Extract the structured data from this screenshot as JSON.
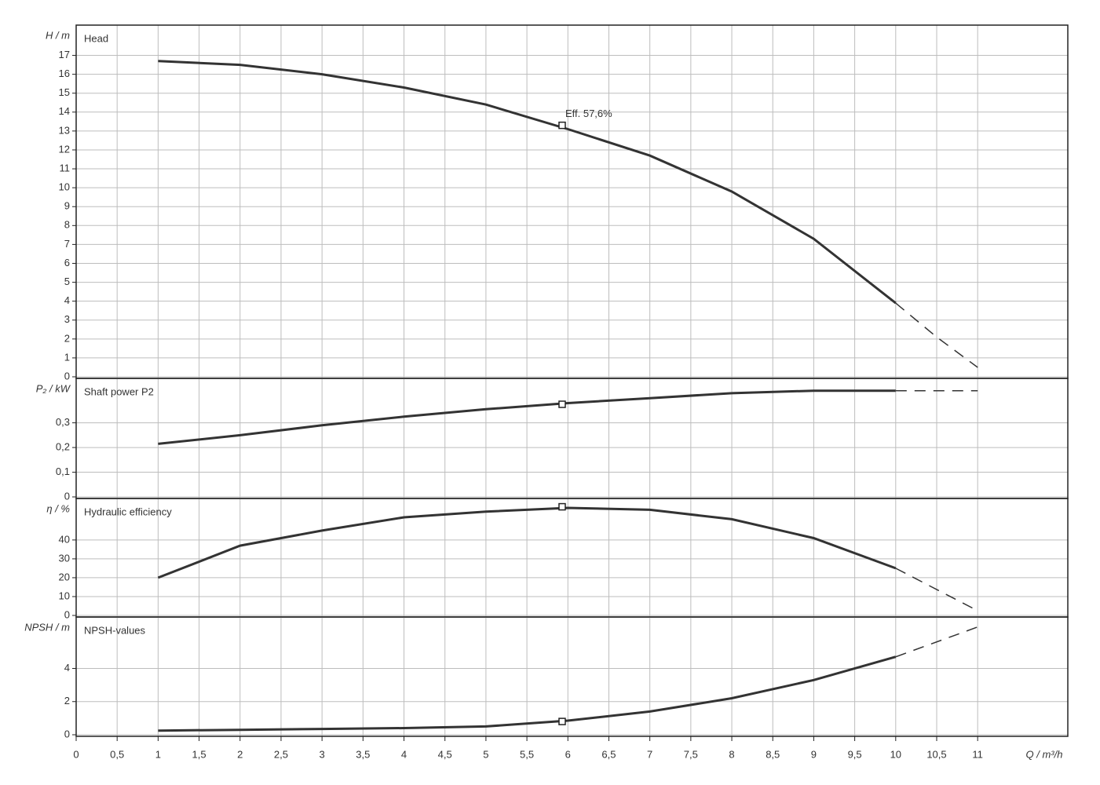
{
  "chart_data": [
    {
      "type": "line",
      "title": "Head",
      "ylabel": "H / m",
      "x": [
        1,
        2,
        3,
        4,
        5,
        6,
        7,
        8,
        9,
        10,
        10.5,
        11
      ],
      "series": [
        {
          "color": "#333333",
          "dash": false,
          "values": [
            16.7,
            16.5,
            16.0,
            15.3,
            14.4,
            13.1,
            11.7,
            9.8,
            7.3,
            3.9,
            null,
            null
          ]
        },
        {
          "color": "#333333",
          "dash": true,
          "values": [
            null,
            null,
            null,
            null,
            null,
            null,
            null,
            null,
            null,
            3.9,
            2.1,
            0.5
          ]
        }
      ],
      "point": {
        "x": 5.93,
        "y": 13.3
      },
      "annotation": "Eff.  57,6%",
      "xlim": [
        0,
        12.1
      ],
      "ylim": [
        0,
        18.6
      ],
      "yticks": [
        0,
        1,
        2,
        3,
        4,
        5,
        6,
        7,
        8,
        9,
        10,
        11,
        12,
        13,
        14,
        15,
        16,
        17
      ],
      "grid": true
    },
    {
      "type": "line",
      "title": "Shaft power P2",
      "ylabel": "P₂ / kW",
      "x": [
        1,
        2,
        3,
        4,
        5,
        6,
        7,
        8,
        9,
        10,
        11
      ],
      "series": [
        {
          "color": "#333333",
          "dash": false,
          "values": [
            0.215,
            0.25,
            0.29,
            0.325,
            0.355,
            0.38,
            0.4,
            0.42,
            0.43,
            0.43,
            null
          ]
        },
        {
          "color": "#333333",
          "dash": true,
          "values": [
            null,
            null,
            null,
            null,
            null,
            null,
            null,
            null,
            null,
            0.43,
            0.43
          ]
        }
      ],
      "point": {
        "x": 5.93,
        "y": 0.375
      },
      "xlim": [
        0,
        12.1
      ],
      "ylim": [
        0,
        0.48
      ],
      "yticks": [
        0,
        {
          "value": 0.1,
          "label": "0,1"
        },
        {
          "value": 0.2,
          "label": "0,2"
        },
        {
          "value": 0.3,
          "label": "0,3"
        }
      ],
      "grid": true
    },
    {
      "type": "line",
      "title": "Hydraulic efficiency",
      "ylabel": "η / %",
      "x": [
        1,
        2,
        3,
        4,
        5,
        6,
        7,
        8,
        9,
        10,
        11
      ],
      "series": [
        {
          "color": "#333333",
          "dash": false,
          "values": [
            20,
            37,
            45,
            52,
            55,
            57,
            56,
            51,
            41,
            25,
            null
          ]
        },
        {
          "color": "#333333",
          "dash": true,
          "values": [
            null,
            null,
            null,
            null,
            null,
            null,
            null,
            null,
            null,
            25,
            2.5
          ]
        }
      ],
      "point": {
        "x": 5.93,
        "y": 57.6
      },
      "xlim": [
        0,
        12.1
      ],
      "ylim": [
        0,
        62
      ],
      "yticks": [
        0,
        10,
        20,
        30,
        40
      ],
      "grid": true
    },
    {
      "type": "line",
      "title": "NPSH-values",
      "ylabel": "NPSH / m",
      "xlabel": "Q / m³/h",
      "x": [
        1,
        2,
        3,
        4,
        5,
        6,
        7,
        8,
        9,
        10,
        11
      ],
      "series": [
        {
          "color": "#333333",
          "dash": false,
          "values": [
            0.25,
            0.3,
            0.35,
            0.4,
            0.5,
            0.85,
            1.4,
            2.2,
            3.3,
            4.7,
            null
          ]
        },
        {
          "color": "#333333",
          "dash": true,
          "values": [
            null,
            null,
            null,
            null,
            null,
            null,
            null,
            null,
            null,
            4.7,
            6.5
          ]
        }
      ],
      "point": {
        "x": 5.93,
        "y": 0.8
      },
      "xlim": [
        0,
        12.1
      ],
      "ylim": [
        0,
        7.1
      ],
      "yticks": [
        0,
        2,
        4
      ],
      "xticks": [
        0,
        {
          "value": 0.5,
          "label": "0,5"
        },
        1,
        {
          "value": 1.5,
          "label": "1,5"
        },
        2,
        {
          "value": 2.5,
          "label": "2,5"
        },
        3,
        {
          "value": 3.5,
          "label": "3,5"
        },
        4,
        {
          "value": 4.5,
          "label": "4,5"
        },
        5,
        {
          "value": 5.5,
          "label": "5,5"
        },
        6,
        {
          "value": 6.5,
          "label": "6,5"
        },
        7,
        {
          "value": 7.5,
          "label": "7,5"
        },
        8,
        {
          "value": 8.5,
          "label": "8,5"
        },
        9,
        {
          "value": 9.5,
          "label": "9,5"
        },
        10,
        {
          "value": 10.5,
          "label": "10,5"
        },
        11
      ],
      "grid": true
    }
  ]
}
